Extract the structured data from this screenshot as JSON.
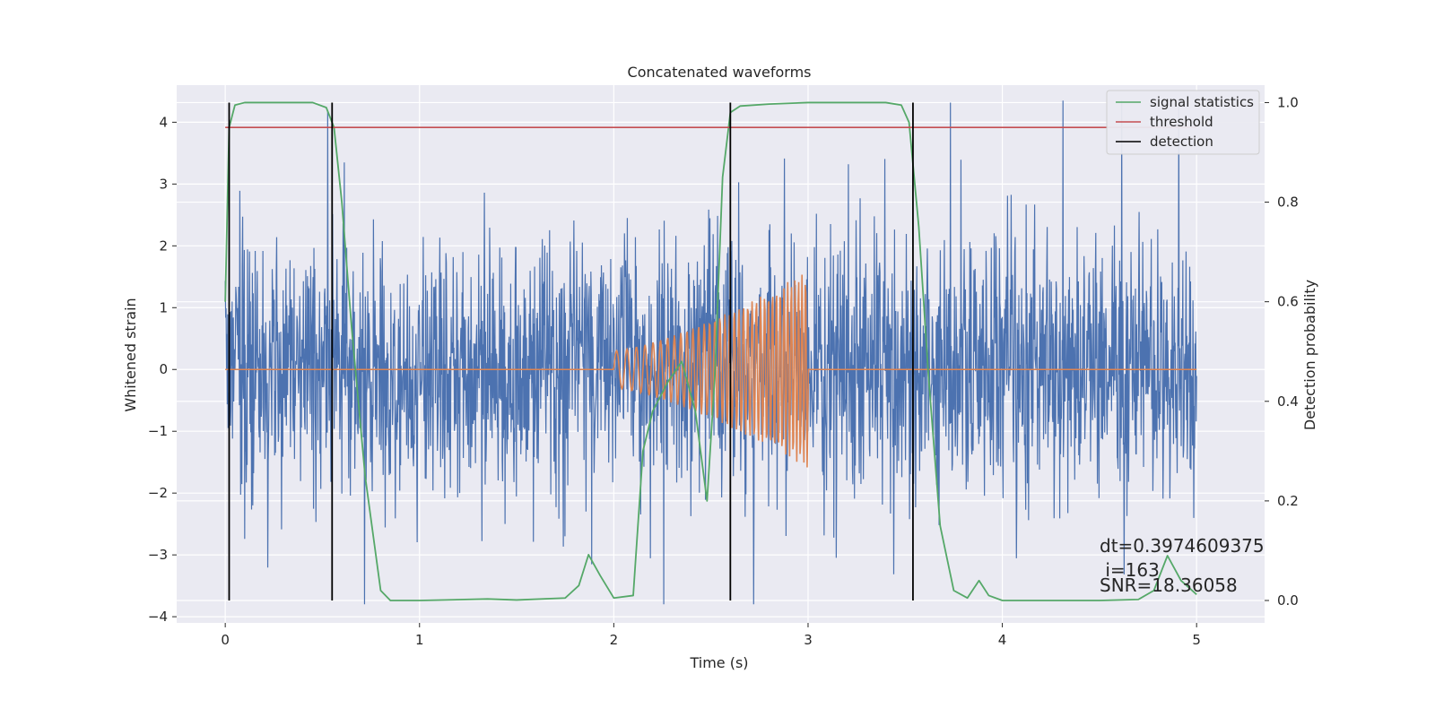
{
  "chart_data": {
    "type": "line",
    "title": "Concatenated waveforms",
    "xlabel": "Time (s)",
    "ylabel_left": "Whitened strain",
    "ylabel_right": "Detection probability",
    "xlim": [
      -0.25,
      5.35
    ],
    "ylim_left": [
      -4.1,
      4.6
    ],
    "ylim_right": [
      -0.045,
      1.035
    ],
    "x_ticks": [
      0,
      1,
      2,
      3,
      4,
      5
    ],
    "y_ticks_left": [
      -4,
      -3,
      -2,
      -1,
      0,
      1,
      2,
      3,
      4
    ],
    "y_ticks_right": [
      0.0,
      0.2,
      0.4,
      0.6,
      0.8,
      1.0
    ],
    "y_ticks_right_labels": [
      "0.0",
      "0.2",
      "0.4",
      "0.6",
      "0.8",
      "1.0"
    ],
    "grid": true,
    "legend_placement": "top-right",
    "legend": [
      {
        "name": "signal statistics",
        "color": "#55a868"
      },
      {
        "name": "threshold",
        "color": "#c44e52"
      },
      {
        "name": "detection",
        "color": "#000000"
      }
    ],
    "noise_series": {
      "color": "#4c72b0",
      "x_range": [
        0,
        5
      ],
      "typical_amplitude": 1.0,
      "peak_range": [
        -3.8,
        4.35
      ]
    },
    "injected_waveform": {
      "color": "#dd8452",
      "start": 2.0,
      "end": 3.0,
      "amplitude_start": 0.3,
      "amplitude_end": 1.6
    },
    "signal_statistics": {
      "color": "#55a868",
      "x": [
        0.0,
        0.02,
        0.05,
        0.1,
        0.2,
        0.45,
        0.52,
        0.56,
        0.6,
        0.65,
        0.72,
        0.8,
        0.85,
        1.0,
        1.35,
        1.5,
        1.75,
        1.82,
        1.87,
        1.93,
        2.0,
        2.1,
        2.15,
        2.2,
        2.28,
        2.35,
        2.42,
        2.48,
        2.52,
        2.56,
        2.6,
        2.65,
        2.8,
        3.0,
        3.4,
        3.48,
        3.52,
        3.57,
        3.62,
        3.68,
        3.75,
        3.82,
        3.88,
        3.93,
        4.0,
        4.5,
        4.7,
        4.78,
        4.85,
        4.92,
        5.0
      ],
      "y": [
        0.6,
        0.95,
        0.995,
        1.0,
        1.0,
        1.0,
        0.99,
        0.95,
        0.8,
        0.55,
        0.25,
        0.02,
        0.0,
        0.0,
        0.003,
        0.001,
        0.005,
        0.03,
        0.092,
        0.05,
        0.005,
        0.01,
        0.3,
        0.38,
        0.44,
        0.48,
        0.38,
        0.2,
        0.45,
        0.85,
        0.98,
        0.993,
        0.997,
        1.0,
        1.0,
        0.995,
        0.96,
        0.75,
        0.45,
        0.15,
        0.02,
        0.005,
        0.04,
        0.01,
        0.0,
        0.0,
        0.002,
        0.02,
        0.09,
        0.04,
        0.012
      ]
    },
    "threshold": {
      "color": "#c44e52",
      "value": 0.95,
      "x_range": [
        0,
        5
      ]
    },
    "detections": {
      "color": "#000000",
      "x": [
        0.02,
        0.55,
        2.6,
        3.54
      ]
    },
    "annotations": [
      "dt=0.3974609375",
      " i=163",
      "SNR=18.36058"
    ]
  }
}
